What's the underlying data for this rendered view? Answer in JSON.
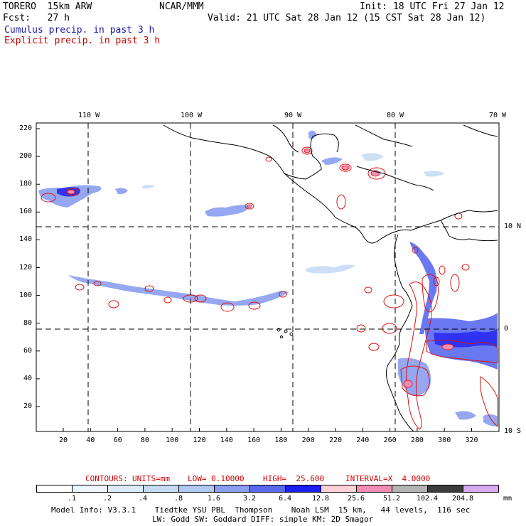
{
  "header": {
    "model": "TORERO  15km ARW",
    "org": "NCAR/MMM",
    "init": "Init: 18 UTC Fri 27 Jan 12",
    "fcst": "Fcst:   27 h",
    "valid": "Valid: 21 UTC Sat 28 Jan 12 (15 CST Sat 28 Jan 12)",
    "cumulus": "Cumulus precip. in past 3 h",
    "explicit": "Explicit precip. in past 3 h"
  },
  "top_ticks": [
    "110 W",
    "100 W",
    "90 W",
    "80 W",
    "70 W"
  ],
  "right_ticks": [
    "10 N",
    "0",
    "10 S"
  ],
  "y_ticks": [
    "220",
    "200",
    "180",
    "160",
    "140",
    "120",
    "100",
    "80",
    "60",
    "40",
    "20"
  ],
  "x_ticks": [
    "20",
    "40",
    "60",
    "80",
    "100",
    "120",
    "140",
    "160",
    "180",
    "200",
    "220",
    "240",
    "260",
    "280",
    "300",
    "320"
  ],
  "contour_info": {
    "label": "CONTOURS:",
    "units": "UNITS=mm",
    "low": "LOW= 0.10000",
    "high": "HIGH=  25.600",
    "interval": "INTERVAL=X  4.0000"
  },
  "legend": {
    "labels": [
      ".1",
      ".2",
      ".4",
      ".8",
      "1.6",
      "3.2",
      "6.4",
      "12.8",
      "25.6",
      "51.2",
      "102.4",
      "204.8"
    ],
    "unit": "mm",
    "colors": [
      "#ffffff",
      "#eef6ff",
      "#dcecfb",
      "#c6dcf5",
      "#b0c8f2",
      "#8a9ef0",
      "#5a6af0",
      "#1a1ef0",
      "#ffd0d8",
      "#f58cb4",
      "#b4b4b4",
      "#3c3c3c",
      "#d8a8f0"
    ]
  },
  "footer": {
    "line1": "Model Info: V3.3.1    Tiedtke YSU PBL  Thompson    Noah LSM  15 km,   44 levels,  116 sec",
    "line2": "LW: Godd SW: Goddard DIFF: simple KM: 2D Smagor"
  }
}
